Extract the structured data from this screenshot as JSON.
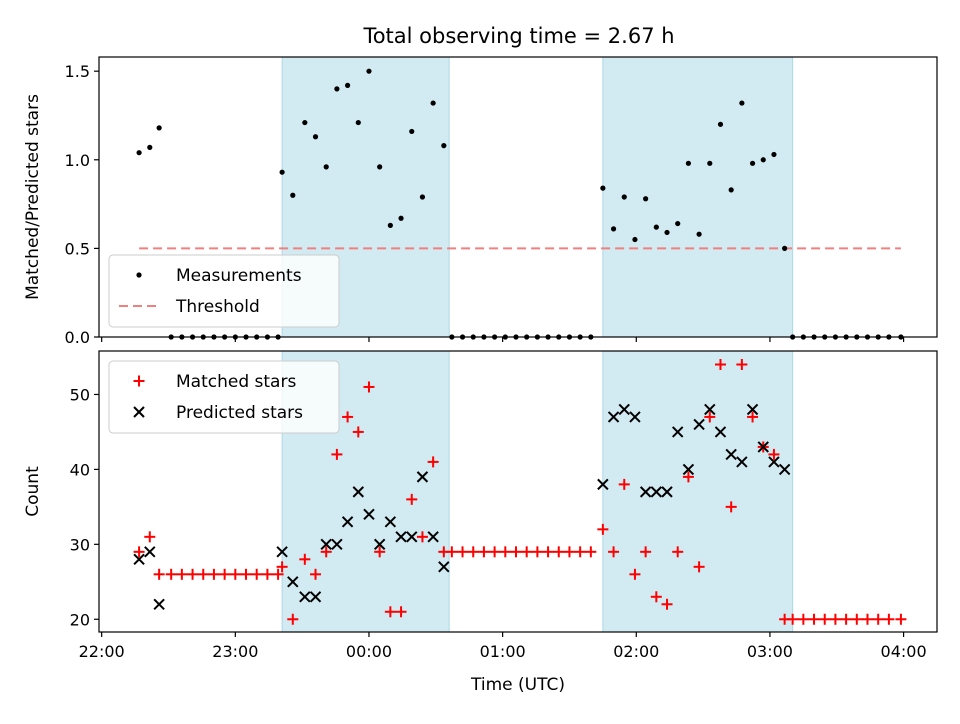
{
  "title": "Total observing time = 2.67 h",
  "chart_data": [
    {
      "type": "scatter",
      "ylabel": "Matched/Predicted stars",
      "xlabel": "",
      "x_unit": "hours since 22:00 UTC",
      "xlim": [
        -0.02,
        6.25
      ],
      "ylim": [
        0.0,
        1.58
      ],
      "yticks": [
        0.0,
        0.5,
        1.0,
        1.5
      ],
      "ytick_labels": [
        "0.0",
        "0.5",
        "1.0",
        "1.5"
      ],
      "grid": false,
      "legend_position": "lower-left",
      "shaded_intervals": [
        [
          1.35,
          2.6
        ],
        [
          3.75,
          5.17
        ]
      ],
      "threshold": {
        "name": "Threshold",
        "value": 0.5,
        "x_range": [
          0.28,
          5.98
        ],
        "color": "#f08080"
      },
      "series": [
        {
          "name": "Measurements",
          "marker": "dot",
          "color": "#000000",
          "x": [
            0.28,
            0.36,
            0.43,
            0.52,
            0.6,
            0.68,
            0.76,
            0.84,
            0.92,
            1.0,
            1.08,
            1.16,
            1.24,
            1.32,
            1.35,
            1.43,
            1.52,
            1.6,
            1.68,
            1.76,
            1.84,
            1.92,
            2.0,
            2.08,
            2.16,
            2.24,
            2.32,
            2.4,
            2.48,
            2.56,
            2.62,
            2.7,
            2.78,
            2.86,
            2.94,
            3.02,
            3.1,
            3.18,
            3.26,
            3.34,
            3.42,
            3.5,
            3.58,
            3.66,
            3.75,
            3.83,
            3.91,
            3.99,
            4.07,
            4.15,
            4.23,
            4.31,
            4.39,
            4.47,
            4.55,
            4.63,
            4.71,
            4.79,
            4.87,
            4.95,
            5.03,
            5.11,
            5.17,
            5.25,
            5.33,
            5.41,
            5.49,
            5.57,
            5.65,
            5.73,
            5.81,
            5.89,
            5.98
          ],
          "y": [
            1.04,
            1.07,
            1.18,
            0,
            0,
            0,
            0,
            0,
            0,
            0,
            0,
            0,
            0,
            0,
            0.93,
            0.8,
            1.21,
            1.13,
            0.96,
            1.4,
            1.42,
            1.21,
            1.5,
            0.96,
            0.63,
            0.67,
            1.16,
            0.79,
            1.32,
            1.08,
            0,
            0,
            0,
            0,
            0,
            0,
            0,
            0,
            0,
            0,
            0,
            0,
            0,
            0,
            0.84,
            0.61,
            0.79,
            0.55,
            0.78,
            0.62,
            0.59,
            0.64,
            0.98,
            0.58,
            0.98,
            1.2,
            0.83,
            1.32,
            0.98,
            1.0,
            1.03,
            0.5,
            0,
            0,
            0,
            0,
            0,
            0,
            0,
            0,
            0,
            0,
            0
          ]
        }
      ]
    },
    {
      "type": "scatter",
      "ylabel": "Count",
      "xlabel": "Time (UTC)",
      "xlim": [
        -0.02,
        6.25
      ],
      "ylim": [
        18.3,
        55.8
      ],
      "yticks": [
        20,
        30,
        40,
        50
      ],
      "ytick_labels": [
        "20",
        "30",
        "40",
        "50"
      ],
      "xticks": [
        0,
        1,
        2,
        3,
        4,
        5,
        6
      ],
      "xtick_labels": [
        "22:00",
        "23:00",
        "00:00",
        "01:00",
        "02:00",
        "03:00",
        "04:00"
      ],
      "grid": false,
      "legend_position": "top-left",
      "shaded_intervals": [
        [
          1.35,
          2.6
        ],
        [
          3.75,
          5.17
        ]
      ],
      "series": [
        {
          "name": "Matched stars",
          "marker": "plus",
          "color": "#ff0000",
          "x": [
            0.28,
            0.36,
            0.43,
            0.52,
            0.6,
            0.68,
            0.76,
            0.84,
            0.92,
            1.0,
            1.08,
            1.16,
            1.24,
            1.32,
            1.35,
            1.43,
            1.52,
            1.6,
            1.68,
            1.76,
            1.84,
            1.92,
            2.0,
            2.08,
            2.16,
            2.24,
            2.32,
            2.4,
            2.48,
            2.56,
            2.62,
            2.7,
            2.78,
            2.86,
            2.94,
            3.02,
            3.1,
            3.18,
            3.26,
            3.34,
            3.42,
            3.5,
            3.58,
            3.66,
            3.75,
            3.83,
            3.91,
            3.99,
            4.07,
            4.15,
            4.23,
            4.31,
            4.39,
            4.47,
            4.55,
            4.63,
            4.71,
            4.79,
            4.87,
            4.95,
            5.03,
            5.11,
            5.17,
            5.25,
            5.33,
            5.41,
            5.49,
            5.57,
            5.65,
            5.73,
            5.81,
            5.89,
            5.98
          ],
          "y": [
            29,
            31,
            26,
            26,
            26,
            26,
            26,
            26,
            26,
            26,
            26,
            26,
            26,
            26,
            27,
            20,
            28,
            26,
            29,
            42,
            47,
            45,
            51,
            29,
            21,
            21,
            36,
            31,
            41,
            29,
            29,
            29,
            29,
            29,
            29,
            29,
            29,
            29,
            29,
            29,
            29,
            29,
            29,
            29,
            32,
            29,
            38,
            26,
            29,
            23,
            22,
            29,
            39,
            27,
            47,
            54,
            35,
            54,
            47,
            43,
            42,
            20,
            20,
            20,
            20,
            20,
            20,
            20,
            20,
            20,
            20,
            20,
            20
          ]
        },
        {
          "name": "Predicted stars",
          "marker": "x",
          "color": "#000000",
          "x": [
            0.28,
            0.36,
            0.43,
            1.35,
            1.43,
            1.52,
            1.6,
            1.68,
            1.76,
            1.84,
            1.92,
            2.0,
            2.08,
            2.16,
            2.24,
            2.32,
            2.4,
            2.48,
            2.56,
            3.75,
            3.83,
            3.91,
            3.99,
            4.07,
            4.15,
            4.23,
            4.31,
            4.39,
            4.47,
            4.55,
            4.63,
            4.71,
            4.79,
            4.87,
            4.95,
            5.03,
            5.11
          ],
          "y": [
            28,
            29,
            22,
            29,
            25,
            23,
            23,
            30,
            30,
            33,
            37,
            34,
            30,
            33,
            31,
            31,
            39,
            31,
            27,
            38,
            47,
            48,
            47,
            37,
            37,
            37,
            45,
            40,
            46,
            48,
            45,
            42,
            41,
            48,
            43,
            41,
            40
          ]
        }
      ]
    }
  ]
}
